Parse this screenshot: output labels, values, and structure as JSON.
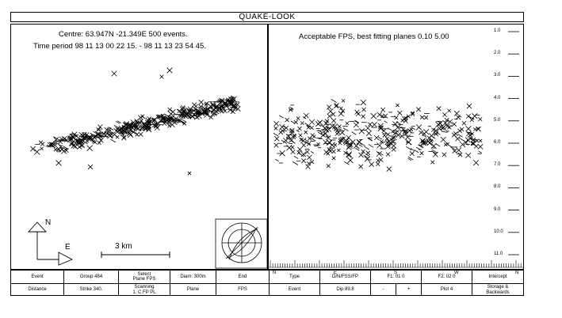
{
  "window": {
    "title": "QUAKE-LOOK"
  },
  "map_panel": {
    "centre_line": "Centre:  63.947N   -21.349E    500 events.",
    "period_line": "Time period 98 11 13 00 22 15. - 98 11 13 23 54 45.",
    "north_label": "N",
    "east_label": "E",
    "scale_label": "3 km"
  },
  "depth_panel": {
    "header": "Acceptable FPS, best fitting planes 0.10 5.00",
    "depth_ticks": [
      "1.0",
      "2.0",
      "3.0",
      "4.0",
      "5.0",
      "6.0",
      "7.0",
      "8.0",
      "9.0",
      "10.0",
      "11.0"
    ],
    "azimuth_labels": [
      "N",
      "E",
      "S",
      "W",
      "N"
    ]
  },
  "toolbar": {
    "row1": {
      "event": "Event",
      "group": "Group  484",
      "select_plane_top": "Select",
      "select_plane_bottom": "Plane          FPS",
      "diam": "Diam: 300m",
      "end": "End",
      "type": "Type",
      "dnfss": "D/N/FSS/FP",
      "f1": "F1: 01  0",
      "f2": "F2: 02  0",
      "intercept": "Intercept"
    },
    "row2": {
      "distance": "Distance",
      "strike": "Strike 340.",
      "scanning_top": "Scanning",
      "scanning_bottom": "1.    C    FP    PL",
      "plane": "Plane",
      "fps": "FPS",
      "event": "Event",
      "dip": "Dip  89.8",
      "minus": "-",
      "plus": "+",
      "plot": "Plot      4",
      "storage_top": "Storage &",
      "storage_bottom": "Backwards"
    }
  },
  "colors": {
    "foreground": "#000000",
    "background": "#ffffff"
  }
}
